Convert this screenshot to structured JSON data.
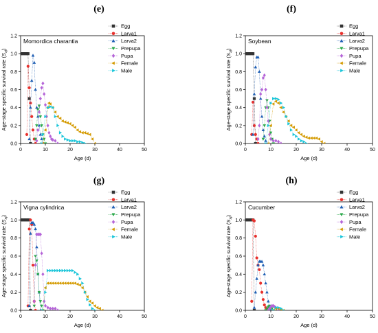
{
  "figure": {
    "panels": [
      {
        "letter": "(e)"
      },
      {
        "letter": "(f)"
      },
      {
        "letter": "(g)"
      },
      {
        "letter": "(h)"
      }
    ]
  },
  "chart_data": [
    {
      "type": "scatter",
      "title": "Momordica charantia",
      "xlabel": "Age (d)",
      "ylabel_main": "Age-stage specific survival rate (",
      "ylabel_var": "S",
      "ylabel_sub": "xj",
      "ylabel_end": ")",
      "xlim": [
        0,
        50
      ],
      "ylim": [
        0,
        1.2
      ],
      "xticks": [
        "0",
        "10",
        "20",
        "30",
        "40",
        "50"
      ],
      "yticks": [
        "0.0",
        "0.2",
        "0.4",
        "0.6",
        "0.8",
        "1.0",
        "1.2"
      ],
      "legend_position": "top-right",
      "series": [
        {
          "name": "Egg",
          "color": "#333333",
          "marker": "square",
          "x": [
            0,
            0.5,
            1,
            1.5,
            2,
            2.5,
            3,
            3.5,
            4
          ],
          "y": [
            1,
            1,
            1,
            1,
            1,
            1,
            1,
            0.5,
            0
          ]
        },
        {
          "name": "Larva1",
          "color": "#e8302c",
          "marker": "circle",
          "x": [
            2.5,
            3,
            3.5,
            4,
            4.5,
            5,
            5.5,
            6
          ],
          "y": [
            0.1,
            0.86,
            0.62,
            0.45,
            0.3,
            0.15,
            0.05,
            0
          ]
        },
        {
          "name": "Larva2",
          "color": "#1f5fb4",
          "marker": "triangle-up",
          "x": [
            3.5,
            4,
            4.5,
            5,
            5.5,
            6,
            6.5,
            7,
            7.5,
            8,
            8.5,
            9
          ],
          "y": [
            0.05,
            0.4,
            0.7,
            0.98,
            0.9,
            0.6,
            0.4,
            0.3,
            0.2,
            0.1,
            0.05,
            0
          ]
        },
        {
          "name": "Prepupa",
          "color": "#2aa84a",
          "marker": "triangle-down",
          "x": [
            6,
            6.5,
            7,
            7.5,
            8,
            8.5,
            9,
            9.5,
            10
          ],
          "y": [
            0.05,
            0.2,
            0.38,
            0.42,
            0.3,
            0.2,
            0.1,
            0.05,
            0
          ]
        },
        {
          "name": "Pupa",
          "color": "#b565d8",
          "marker": "diamond",
          "x": [
            6.5,
            7,
            7.5,
            8,
            8.5,
            9,
            9.5,
            10,
            10.5,
            11,
            11.5,
            12,
            12.5,
            13,
            14,
            15
          ],
          "y": [
            0.03,
            0.15,
            0.35,
            0.5,
            0.62,
            0.67,
            0.55,
            0.43,
            0.3,
            0.2,
            0.12,
            0.08,
            0.05,
            0.04,
            0.03,
            0
          ]
        },
        {
          "name": "Female",
          "color": "#d49a00",
          "marker": "triangle-left",
          "x": [
            9,
            10,
            11,
            11.5,
            12,
            13,
            14,
            15,
            16,
            17,
            18,
            19,
            20,
            21,
            22,
            23,
            24,
            25,
            26,
            27,
            28,
            29,
            30
          ],
          "y": [
            0,
            0.15,
            0.4,
            0.45,
            0.44,
            0.4,
            0.35,
            0.3,
            0.28,
            0.25,
            0.24,
            0.23,
            0.22,
            0.2,
            0.18,
            0.15,
            0.13,
            0.12,
            0.12,
            0.11,
            0.1,
            0.05,
            0
          ]
        },
        {
          "name": "Male",
          "color": "#19c5d9",
          "marker": "triangle-right",
          "x": [
            8.5,
            9,
            10,
            11,
            12,
            13,
            14,
            15,
            16,
            17,
            18,
            19,
            20,
            21,
            22,
            23,
            24,
            25,
            26
          ],
          "y": [
            0,
            0.1,
            0.3,
            0.4,
            0.41,
            0.4,
            0.3,
            0.2,
            0.12,
            0.08,
            0.05,
            0.04,
            0.03,
            0.03,
            0.03,
            0.02,
            0.02,
            0.01,
            0
          ]
        }
      ]
    },
    {
      "type": "scatter",
      "title": "Soybean",
      "xlabel": "Age (d)",
      "ylabel_main": "Age-stage specific survival rate (",
      "ylabel_var": "S",
      "ylabel_sub": "xj",
      "ylabel_end": ")",
      "xlim": [
        0,
        50
      ],
      "ylim": [
        0,
        1.2
      ],
      "xticks": [
        "0",
        "10",
        "20",
        "30",
        "40",
        "50"
      ],
      "yticks": [
        "0.0",
        "0.2",
        "0.4",
        "0.6",
        "0.8",
        "1.0",
        "1.2"
      ],
      "legend_position": "top-right",
      "series": [
        {
          "name": "Egg",
          "color": "#333333",
          "marker": "square",
          "x": [
            0,
            0.5,
            1,
            1.5,
            2,
            2.5,
            3,
            3.5,
            4
          ],
          "y": [
            1,
            1,
            1,
            1,
            1,
            1,
            1,
            0.5,
            0
          ]
        },
        {
          "name": "Larva1",
          "color": "#e8302c",
          "marker": "circle",
          "x": [
            2.5,
            3,
            3.5,
            4,
            4.5,
            5
          ],
          "y": [
            0.1,
            0.46,
            0.2,
            0.1,
            0.05,
            0
          ]
        },
        {
          "name": "Larva2",
          "color": "#1f5fb4",
          "marker": "triangle-up",
          "x": [
            3,
            3.5,
            4,
            4.5,
            5,
            5.5,
            6,
            6.5,
            7,
            7.5,
            8,
            8.5
          ],
          "y": [
            0.1,
            0.55,
            0.85,
            0.96,
            0.96,
            0.8,
            0.5,
            0.3,
            0.15,
            0.08,
            0.03,
            0
          ]
        },
        {
          "name": "Prepupa",
          "color": "#2aa84a",
          "marker": "triangle-down",
          "x": [
            7,
            7.5,
            8,
            8.5,
            9,
            9.5,
            10,
            10.5,
            11
          ],
          "y": [
            0.05,
            0.2,
            0.4,
            0.48,
            0.4,
            0.25,
            0.12,
            0.05,
            0
          ]
        },
        {
          "name": "Pupa",
          "color": "#b565d8",
          "marker": "diamond",
          "x": [
            5,
            5.5,
            6,
            6.5,
            7,
            7.5,
            8,
            8.5,
            9,
            9.5,
            10,
            11,
            12,
            13,
            14
          ],
          "y": [
            0.05,
            0.2,
            0.55,
            0.6,
            0.73,
            0.76,
            0.6,
            0.4,
            0.25,
            0.1,
            0.05,
            0.03,
            0.03,
            0.02,
            0
          ]
        },
        {
          "name": "Female",
          "color": "#d49a00",
          "marker": "triangle-left",
          "x": [
            9,
            10,
            11,
            12,
            13,
            14,
            15,
            16,
            17,
            18,
            19,
            20,
            21,
            22,
            23,
            24,
            25,
            26,
            27,
            28,
            29,
            30,
            31
          ],
          "y": [
            0,
            0.2,
            0.44,
            0.47,
            0.45,
            0.4,
            0.35,
            0.3,
            0.25,
            0.2,
            0.18,
            0.15,
            0.12,
            0.1,
            0.08,
            0.07,
            0.06,
            0.06,
            0.06,
            0.06,
            0.05,
            0.02,
            0
          ]
        },
        {
          "name": "Male",
          "color": "#19c5d9",
          "marker": "triangle-right",
          "x": [
            8,
            9,
            10,
            11,
            12,
            13,
            14,
            15,
            16,
            17,
            18,
            19,
            20,
            21,
            22,
            23,
            24
          ],
          "y": [
            0,
            0.2,
            0.45,
            0.5,
            0.5,
            0.49,
            0.45,
            0.4,
            0.3,
            0.22,
            0.15,
            0.1,
            0.08,
            0.05,
            0.03,
            0.02,
            0
          ]
        }
      ]
    },
    {
      "type": "scatter",
      "title": "Vigna cylindrica",
      "xlabel": "Age (d)",
      "ylabel_main": "Age-stage specific survival rate (",
      "ylabel_var": "S",
      "ylabel_sub": "xj",
      "ylabel_end": ")",
      "xlim": [
        0,
        50
      ],
      "ylim": [
        0,
        1.2
      ],
      "xticks": [
        "0",
        "10",
        "20",
        "30",
        "40",
        "50"
      ],
      "yticks": [
        "0.0",
        "0.2",
        "0.4",
        "0.6",
        "0.8",
        "1.0",
        "1.2"
      ],
      "legend_position": "top-right",
      "series": [
        {
          "name": "Egg",
          "color": "#333333",
          "marker": "square",
          "x": [
            0,
            0.5,
            1,
            1.5,
            2,
            2.5,
            3,
            3.5,
            4
          ],
          "y": [
            1,
            1,
            1,
            1,
            1,
            1,
            1,
            1,
            0
          ]
        },
        {
          "name": "Larva1",
          "color": "#e8302c",
          "marker": "circle",
          "x": [
            3,
            3.5,
            4,
            4.5,
            5,
            5.5,
            6
          ],
          "y": [
            0.05,
            0.9,
            1,
            0.95,
            0.5,
            0.1,
            0
          ]
        },
        {
          "name": "Larva2",
          "color": "#1f5fb4",
          "marker": "triangle-up",
          "x": [
            3.5,
            4,
            4.5,
            5,
            5.5,
            6,
            6.5,
            7,
            7.5,
            8
          ],
          "y": [
            0.05,
            0.85,
            0.97,
            0.97,
            0.95,
            0.9,
            0.7,
            0.4,
            0.2,
            0
          ]
        },
        {
          "name": "Prepupa",
          "color": "#2aa84a",
          "marker": "triangle-down",
          "x": [
            5.5,
            6,
            6.5,
            7,
            7.5,
            8,
            8.5,
            9
          ],
          "y": [
            0.05,
            0.6,
            0.55,
            0.4,
            0.2,
            0.1,
            0.05,
            0
          ]
        },
        {
          "name": "Pupa",
          "color": "#b565d8",
          "marker": "diamond",
          "x": [
            5.5,
            6,
            6.5,
            7,
            7.5,
            8,
            8.5,
            9,
            9.5,
            10,
            11,
            12,
            13,
            14,
            15
          ],
          "y": [
            0.1,
            0.5,
            0.84,
            0.84,
            0.84,
            0.84,
            0.63,
            0.4,
            0.1,
            0.05,
            0.03,
            0.02,
            0.02,
            0.02,
            0
          ]
        },
        {
          "name": "Female",
          "color": "#d49a00",
          "marker": "triangle-left",
          "x": [
            9,
            10,
            11,
            12,
            13,
            14,
            15,
            16,
            17,
            18,
            19,
            20,
            21,
            22,
            23,
            24,
            25,
            26,
            27,
            28,
            29,
            30,
            31,
            32,
            33
          ],
          "y": [
            0,
            0.25,
            0.3,
            0.3,
            0.3,
            0.3,
            0.3,
            0.3,
            0.3,
            0.3,
            0.3,
            0.3,
            0.3,
            0.3,
            0.29,
            0.28,
            0.25,
            0.2,
            0.15,
            0.1,
            0.08,
            0.05,
            0.03,
            0.02,
            0
          ]
        },
        {
          "name": "Male",
          "color": "#19c5d9",
          "marker": "triangle-right",
          "x": [
            9,
            10,
            11,
            12,
            13,
            14,
            15,
            16,
            17,
            18,
            19,
            20,
            21,
            22,
            23,
            24,
            25,
            26,
            27,
            28,
            29,
            30
          ],
          "y": [
            0,
            0.2,
            0.44,
            0.44,
            0.44,
            0.44,
            0.44,
            0.44,
            0.44,
            0.44,
            0.44,
            0.44,
            0.44,
            0.42,
            0.4,
            0.35,
            0.3,
            0.2,
            0.12,
            0.06,
            0.02,
            0
          ]
        }
      ]
    },
    {
      "type": "scatter",
      "title": "Cucumber",
      "xlabel": "Age (d)",
      "ylabel_main": "Age-stage specific survival rate (",
      "ylabel_var": "S",
      "ylabel_sub": "xj",
      "ylabel_end": ")",
      "xlim": [
        0,
        50
      ],
      "ylim": [
        0,
        1.2
      ],
      "xticks": [
        "0",
        "10",
        "20",
        "30",
        "40",
        "50"
      ],
      "yticks": [
        "0.0",
        "0.2",
        "0.4",
        "0.6",
        "0.8",
        "1.0",
        "1.2"
      ],
      "legend_position": "top-right",
      "series": [
        {
          "name": "Egg",
          "color": "#333333",
          "marker": "square",
          "x": [
            0,
            0.5,
            1,
            1.5,
            2,
            2.5,
            3,
            3.5
          ],
          "y": [
            1,
            1,
            1,
            1,
            1,
            1,
            1,
            0
          ]
        },
        {
          "name": "Larva1",
          "color": "#e8302c",
          "marker": "circle",
          "x": [
            2.5,
            3,
            3.5,
            4,
            4.5,
            5,
            5.5,
            6,
            6.5,
            7,
            7.5,
            8,
            8.5,
            9
          ],
          "y": [
            0.1,
            1,
            0.99,
            0.82,
            0.58,
            0.5,
            0.45,
            0.3,
            0.2,
            0.12,
            0.06,
            0.03,
            0.01,
            0
          ]
        },
        {
          "name": "Larva2",
          "color": "#1f5fb4",
          "marker": "triangle-up",
          "x": [
            3.5,
            4,
            4.5,
            5,
            5.5,
            6,
            6.5,
            7,
            7.5,
            8,
            8.5,
            9,
            9.5,
            10
          ],
          "y": [
            0.03,
            0.2,
            0.35,
            0.5,
            0.54,
            0.54,
            0.54,
            0.5,
            0.4,
            0.3,
            0.2,
            0.1,
            0.04,
            0
          ]
        },
        {
          "name": "Prepupa",
          "color": "#2aa84a",
          "marker": "triangle-down",
          "x": [
            8,
            8.5,
            9,
            9.5,
            10,
            10.5,
            11
          ],
          "y": [
            0,
            0.02,
            0.04,
            0.05,
            0.04,
            0.02,
            0
          ]
        },
        {
          "name": "Pupa",
          "color": "#b565d8",
          "marker": "diamond",
          "x": [
            9,
            9.5,
            10,
            10.5,
            11,
            11.5,
            12,
            13
          ],
          "y": [
            0,
            0.02,
            0.04,
            0.05,
            0.05,
            0.04,
            0.03,
            0
          ]
        },
        {
          "name": "Female",
          "color": "#d49a00",
          "marker": "triangle-left",
          "x": [
            11,
            12,
            13,
            14,
            15
          ],
          "y": [
            0,
            0.02,
            0.02,
            0.01,
            0
          ]
        },
        {
          "name": "Male",
          "color": "#19c5d9",
          "marker": "triangle-right",
          "x": [
            11,
            12,
            13,
            14,
            15
          ],
          "y": [
            0,
            0.03,
            0.03,
            0.02,
            0
          ]
        }
      ]
    }
  ]
}
